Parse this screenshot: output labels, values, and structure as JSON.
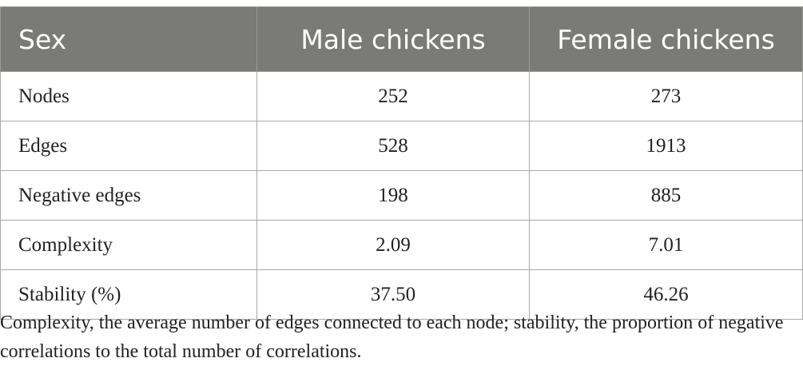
{
  "table": {
    "headers": [
      "Sex",
      "Male chickens",
      "Female chickens"
    ],
    "rows": [
      {
        "label": "Nodes",
        "male": "252",
        "female": "273"
      },
      {
        "label": "Edges",
        "male": "528",
        "female": "1913"
      },
      {
        "label": "Negative edges",
        "male": "198",
        "female": "885"
      },
      {
        "label": "Complexity",
        "male": "2.09",
        "female": "7.01"
      },
      {
        "label": "Stability (%)",
        "male": "37.50",
        "female": "46.26"
      }
    ]
  },
  "footnote": "Complexity, the average number of edges connected to each node; stability, the proportion of negative correlations to the total number of correlations.",
  "colors": {
    "header_bg": "#7a7a78",
    "header_text": "#ffffff",
    "border": "#a8a8a8"
  }
}
